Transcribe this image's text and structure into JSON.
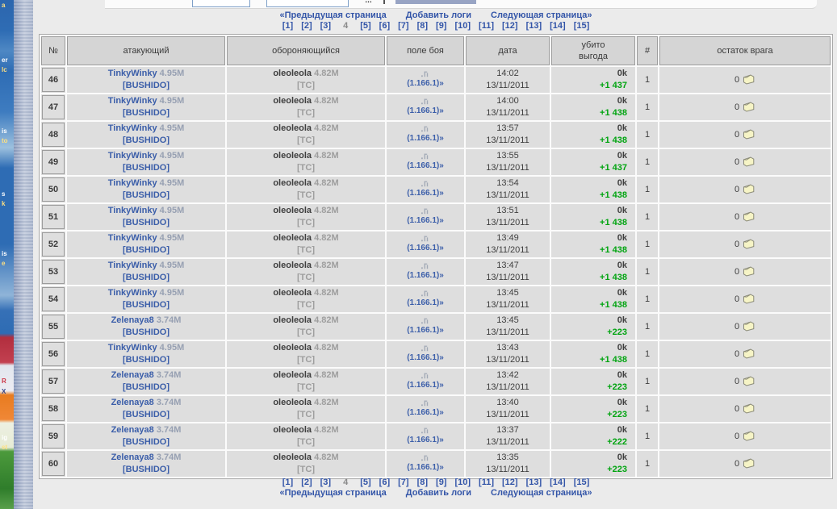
{
  "top_bar": {
    "ellipsis": "…"
  },
  "desktop_strip": {
    "fragments": [
      "a",
      "er",
      "lc",
      "is",
      "to",
      "s",
      "k",
      "is",
      "e",
      "R",
      "X",
      "ig",
      "st"
    ]
  },
  "pagination": {
    "prev_label": "«Предыдущая страница",
    "add_label": "Добавить логи",
    "next_label": "Следующая страница»",
    "current_page": "4",
    "pages": [
      "[1]",
      "[2]",
      "[3]",
      "4",
      "[5]",
      "[6]",
      "[7]",
      "[8]",
      "[9]",
      "[10]",
      "[11]",
      "[12]",
      "[13]",
      "[14]",
      "[15]"
    ]
  },
  "table": {
    "headers": {
      "num": "№",
      "attacker": "атакующий",
      "defender": "обороняющийся",
      "field": "поле боя",
      "date": "дата",
      "profit_line1": "убито",
      "profit_line2": "выгода",
      "count": "#",
      "remainder": "остаток врага"
    },
    "rows": [
      {
        "n": "46",
        "attacker": "TinkyWinky",
        "attacker_score": "4.95M",
        "attacker_alliance": "[BUSHIDO]",
        "defender": "oleoleola",
        "defender_score": "4.82M",
        "defender_alliance": "[TC]",
        "coords": "(1.166.1)»",
        "time": "14:02",
        "date": "13/11/2011",
        "killed": "0k",
        "profit": "+1 437",
        "count": "1",
        "remainder": "0"
      },
      {
        "n": "47",
        "attacker": "TinkyWinky",
        "attacker_score": "4.95M",
        "attacker_alliance": "[BUSHIDO]",
        "defender": "oleoleola",
        "defender_score": "4.82M",
        "defender_alliance": "[TC]",
        "coords": "(1.166.1)»",
        "time": "14:00",
        "date": "13/11/2011",
        "killed": "0k",
        "profit": "+1 438",
        "count": "1",
        "remainder": "0"
      },
      {
        "n": "48",
        "attacker": "TinkyWinky",
        "attacker_score": "4.95M",
        "attacker_alliance": "[BUSHIDO]",
        "defender": "oleoleola",
        "defender_score": "4.82M",
        "defender_alliance": "[TC]",
        "coords": "(1.166.1)»",
        "time": "13:57",
        "date": "13/11/2011",
        "killed": "0k",
        "profit": "+1 438",
        "count": "1",
        "remainder": "0"
      },
      {
        "n": "49",
        "attacker": "TinkyWinky",
        "attacker_score": "4.95M",
        "attacker_alliance": "[BUSHIDO]",
        "defender": "oleoleola",
        "defender_score": "4.82M",
        "defender_alliance": "[TC]",
        "coords": "(1.166.1)»",
        "time": "13:55",
        "date": "13/11/2011",
        "killed": "0k",
        "profit": "+1 437",
        "count": "1",
        "remainder": "0"
      },
      {
        "n": "50",
        "attacker": "TinkyWinky",
        "attacker_score": "4.95M",
        "attacker_alliance": "[BUSHIDO]",
        "defender": "oleoleola",
        "defender_score": "4.82M",
        "defender_alliance": "[TC]",
        "coords": "(1.166.1)»",
        "time": "13:54",
        "date": "13/11/2011",
        "killed": "0k",
        "profit": "+1 438",
        "count": "1",
        "remainder": "0"
      },
      {
        "n": "51",
        "attacker": "TinkyWinky",
        "attacker_score": "4.95M",
        "attacker_alliance": "[BUSHIDO]",
        "defender": "oleoleola",
        "defender_score": "4.82M",
        "defender_alliance": "[TC]",
        "coords": "(1.166.1)»",
        "time": "13:51",
        "date": "13/11/2011",
        "killed": "0k",
        "profit": "+1 438",
        "count": "1",
        "remainder": "0"
      },
      {
        "n": "52",
        "attacker": "TinkyWinky",
        "attacker_score": "4.95M",
        "attacker_alliance": "[BUSHIDO]",
        "defender": "oleoleola",
        "defender_score": "4.82M",
        "defender_alliance": "[TC]",
        "coords": "(1.166.1)»",
        "time": "13:49",
        "date": "13/11/2011",
        "killed": "0k",
        "profit": "+1 438",
        "count": "1",
        "remainder": "0"
      },
      {
        "n": "53",
        "attacker": "TinkyWinky",
        "attacker_score": "4.95M",
        "attacker_alliance": "[BUSHIDO]",
        "defender": "oleoleola",
        "defender_score": "4.82M",
        "defender_alliance": "[TC]",
        "coords": "(1.166.1)»",
        "time": "13:47",
        "date": "13/11/2011",
        "killed": "0k",
        "profit": "+1 438",
        "count": "1",
        "remainder": "0"
      },
      {
        "n": "54",
        "attacker": "TinkyWinky",
        "attacker_score": "4.95M",
        "attacker_alliance": "[BUSHIDO]",
        "defender": "oleoleola",
        "defender_score": "4.82M",
        "defender_alliance": "[TC]",
        "coords": "(1.166.1)»",
        "time": "13:45",
        "date": "13/11/2011",
        "killed": "0k",
        "profit": "+1 438",
        "count": "1",
        "remainder": "0"
      },
      {
        "n": "55",
        "attacker": "Zelenaya8",
        "attacker_score": "3.74M",
        "attacker_alliance": "[BUSHIDO]",
        "defender": "oleoleola",
        "defender_score": "4.82M",
        "defender_alliance": "[TC]",
        "coords": "(1.166.1)»",
        "time": "13:45",
        "date": "13/11/2011",
        "killed": "0k",
        "profit": "+223",
        "count": "1",
        "remainder": "0"
      },
      {
        "n": "56",
        "attacker": "TinkyWinky",
        "attacker_score": "4.95M",
        "attacker_alliance": "[BUSHIDO]",
        "defender": "oleoleola",
        "defender_score": "4.82M",
        "defender_alliance": "[TC]",
        "coords": "(1.166.1)»",
        "time": "13:43",
        "date": "13/11/2011",
        "killed": "0k",
        "profit": "+1 438",
        "count": "1",
        "remainder": "0"
      },
      {
        "n": "57",
        "attacker": "Zelenaya8",
        "attacker_score": "3.74M",
        "attacker_alliance": "[BUSHIDO]",
        "defender": "oleoleola",
        "defender_score": "4.82M",
        "defender_alliance": "[TC]",
        "coords": "(1.166.1)»",
        "time": "13:42",
        "date": "13/11/2011",
        "killed": "0k",
        "profit": "+223",
        "count": "1",
        "remainder": "0"
      },
      {
        "n": "58",
        "attacker": "Zelenaya8",
        "attacker_score": "3.74M",
        "attacker_alliance": "[BUSHIDO]",
        "defender": "oleoleola",
        "defender_score": "4.82M",
        "defender_alliance": "[TC]",
        "coords": "(1.166.1)»",
        "time": "13:40",
        "date": "13/11/2011",
        "killed": "0k",
        "profit": "+223",
        "count": "1",
        "remainder": "0"
      },
      {
        "n": "59",
        "attacker": "Zelenaya8",
        "attacker_score": "3.74M",
        "attacker_alliance": "[BUSHIDO]",
        "defender": "oleoleola",
        "defender_score": "4.82M",
        "defender_alliance": "[TC]",
        "coords": "(1.166.1)»",
        "time": "13:37",
        "date": "13/11/2011",
        "killed": "0k",
        "profit": "+222",
        "count": "1",
        "remainder": "0"
      },
      {
        "n": "60",
        "attacker": "Zelenaya8",
        "attacker_score": "3.74M",
        "attacker_alliance": "[BUSHIDO]",
        "defender": "oleoleola",
        "defender_score": "4.82M",
        "defender_alliance": "[TC]",
        "coords": "(1.166.1)»",
        "time": "13:35",
        "date": "13/11/2011",
        "killed": "0k",
        "profit": "+223",
        "count": "1",
        "remainder": "0"
      }
    ]
  },
  "colors": {
    "link_blue": "#3B5EA9",
    "profit_green": "#00A410",
    "row_gray": "#DEDEDE",
    "header_gray": "#D5D5D5"
  }
}
